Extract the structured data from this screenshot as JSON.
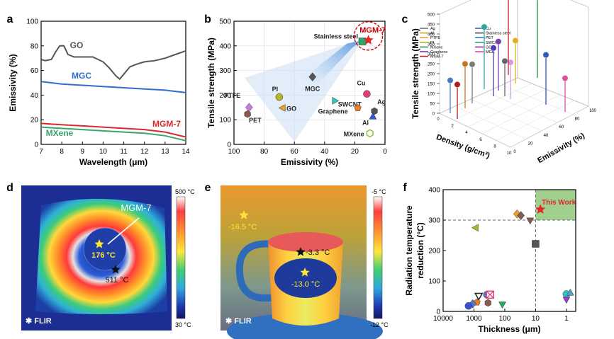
{
  "panels": {
    "a": {
      "letter": "a",
      "chart_data": {
        "type": "line",
        "xlabel": "Wavelength (μm)",
        "ylabel": "Emissivity (%)",
        "xlim": [
          7,
          14
        ],
        "ylim": [
          0,
          100
        ],
        "xticks": [
          "7",
          "8",
          "9",
          "10",
          "11",
          "12",
          "13",
          "14"
        ],
        "yticks": [
          "0",
          "20",
          "40",
          "60",
          "80",
          "100"
        ],
        "series": [
          {
            "name": "GO",
            "color": "#555555",
            "x": [
              7,
              7.2,
              7.5,
              7.7,
              7.9,
              8.1,
              8.3,
              8.6,
              9,
              9.5,
              10,
              10.3,
              10.6,
              10.8,
              11,
              11.3,
              11.6,
              12,
              12.5,
              13,
              13.5,
              14
            ],
            "y": [
              69,
              68,
              69,
              75,
              80,
              80,
              73,
              71,
              71,
              71,
              67,
              62,
              56,
              53,
              57,
              63,
              65,
              67,
              68,
              70,
              73,
              76
            ]
          },
          {
            "name": "MGC",
            "color": "#2f6fcf",
            "x": [
              7,
              8,
              9,
              10,
              11,
              12,
              13,
              14
            ],
            "y": [
              51,
              49,
              48,
              47,
              46,
              45,
              44,
              42
            ]
          },
          {
            "name": "MGM-7",
            "color": "#d92b2b",
            "x": [
              7,
              8,
              9,
              10,
              11,
              12,
              13,
              14
            ],
            "y": [
              17,
              16,
              15,
              14,
              13,
              12,
              10,
              6
            ]
          },
          {
            "name": "MXene",
            "color": "#3aa66a",
            "x": [
              7,
              8,
              9,
              10,
              11,
              12,
              13,
              14
            ],
            "y": [
              14,
              13,
              12,
              11,
              10,
              9,
              7,
              3
            ]
          }
        ]
      }
    },
    "b": {
      "letter": "b",
      "chart_data": {
        "type": "scatter",
        "xlabel": "Emissivity (%)",
        "ylabel": "Tensile strength (MPa)",
        "xlim": [
          100,
          0
        ],
        "ylim": [
          0,
          500
        ],
        "xticks": [
          "100",
          "80",
          "60",
          "40",
          "20",
          "0"
        ],
        "yticks": [
          "0",
          "100",
          "200",
          "300",
          "400",
          "500"
        ],
        "points": [
          {
            "name": "PTFE",
            "x": 90,
            "y": 150,
            "color": "#c77de0",
            "marker": "diamond"
          },
          {
            "name": "PET",
            "x": 91,
            "y": 123,
            "color": "#8a5a4e",
            "marker": "hexagon"
          },
          {
            "name": "PI",
            "x": 70,
            "y": 192,
            "color": "#b5b52a",
            "marker": "circle"
          },
          {
            "name": "GO",
            "x": 68,
            "y": 148,
            "color": "#e8a228",
            "marker": "tri-left"
          },
          {
            "name": "MGC",
            "x": 48,
            "y": 274,
            "color": "#555555",
            "marker": "diamond"
          },
          {
            "name": "SWCNT",
            "x": 33,
            "y": 177,
            "color": "#2cc9c0",
            "marker": "tri-right"
          },
          {
            "name": "Graphene",
            "x": 18,
            "y": 148,
            "color": "#ee7d2a",
            "marker": "pentagon"
          },
          {
            "name": "Cu",
            "x": 12,
            "y": 205,
            "color": "#e23b7a",
            "marker": "circle"
          },
          {
            "name": "Ag",
            "x": 7,
            "y": 135,
            "color": "#555555",
            "marker": "hexagon"
          },
          {
            "name": "Al",
            "x": 8,
            "y": 114,
            "color": "#2c5bd6",
            "marker": "tri-up"
          },
          {
            "name": "MXene",
            "x": 10,
            "y": 45,
            "color": "#86c63c",
            "marker": "hexagon-open"
          },
          {
            "name": "Stainless steel",
            "x": 15,
            "y": 418,
            "color": "#2aa865",
            "marker": "square"
          },
          {
            "name": "MGM-7",
            "x": 11,
            "y": 423,
            "color": "#e02828",
            "marker": "star"
          }
        ],
        "highlight": "MGM-7"
      }
    },
    "c": {
      "letter": "c",
      "chart_data": {
        "type": "scatter",
        "dimension": "3d-stem",
        "xlabel": "Density (g/cm³)",
        "ylabel": "Emissivity (%)",
        "zlabel": "Tensile strength (MPa)",
        "zlim": [
          0,
          500
        ],
        "zticks": [
          "0",
          "50",
          "100",
          "150",
          "200",
          "250",
          "300",
          "350",
          "400",
          "450",
          "500"
        ],
        "xticks": [
          "0",
          "2",
          "4",
          "6",
          "8",
          "10"
        ],
        "yticks": [
          "0",
          "20",
          "40",
          "60",
          "80",
          "100"
        ],
        "legend": [
          {
            "name": "Ag",
            "color": "#777777"
          },
          {
            "name": "Al",
            "color": "#c9a126"
          },
          {
            "name": "PTFE",
            "color": "#e5a640"
          },
          {
            "name": "PI",
            "color": "#b8b02b"
          },
          {
            "name": "MXene",
            "color": "#3c8d5c"
          },
          {
            "name": "Graphene",
            "color": "#6c3bb0"
          },
          {
            "name": "MGM-7",
            "color": "#d02020"
          },
          {
            "name": "Cu",
            "color": "#3b63c4"
          },
          {
            "name": "Stainless steel",
            "color": "#4a4a4a"
          },
          {
            "name": "PET",
            "color": "#2a7bd0"
          },
          {
            "name": "SWCNT",
            "color": "#2b9c8a"
          },
          {
            "name": "GO",
            "color": "#8c2fa7"
          },
          {
            "name": "MGC",
            "color": "#d64ca8"
          }
        ],
        "stems": [
          {
            "color": "#4f78c8",
            "z": 130
          },
          {
            "color": "#b01c1c",
            "z": 140
          },
          {
            "color": "#c9741f",
            "z": 205
          },
          {
            "color": "#7a7a7a",
            "z": 170
          },
          {
            "color": "#d49ae4",
            "z": 155
          },
          {
            "color": "#2fa4a0",
            "z": 320
          },
          {
            "color": "#4a3bb0",
            "z": 230
          },
          {
            "color": "#7d3fb0",
            "z": 235
          },
          {
            "color": "#cc2020",
            "z": 470
          },
          {
            "color": "#e1b01f",
            "z": 195
          },
          {
            "color": "#2a8f3a",
            "z": 440
          },
          {
            "color": "#666666",
            "z": 145
          },
          {
            "color": "#3356b8",
            "z": 240
          },
          {
            "color": "#e04fa0",
            "z": 135
          }
        ]
      }
    },
    "d": {
      "letter": "d",
      "label": "MGM-7",
      "center_temp": "176 °C",
      "edge_temp": "511 °C",
      "scale_max": "500 °C",
      "scale_min": "30 °C",
      "brand": "FLIR"
    },
    "e": {
      "letter": "e",
      "ambient_temp": "-16.5 °C",
      "cup_temp": "-3.3 °C",
      "center_temp": "-13.0 °C",
      "scale_max": "-5 °C",
      "scale_min": "-12 °C",
      "brand": "FLIR"
    },
    "f": {
      "letter": "f",
      "chart_data": {
        "type": "scatter",
        "xlabel": "Thickness (μm)",
        "ylabel": "Radiation temperature reduction (°C)",
        "ylabel_lines": [
          "Radiation temperature",
          "reduction (°C)"
        ],
        "xscale": "log-reversed",
        "xlim": [
          10000,
          0.5
        ],
        "ylim": [
          0,
          400
        ],
        "xticks": [
          "10000",
          "1000",
          "100",
          "10",
          "1"
        ],
        "yticks": [
          "0",
          "100",
          "200",
          "300",
          "400"
        ],
        "this_work_label": "This Work",
        "points": [
          {
            "x": 7,
            "y": 335,
            "color": "#e02828",
            "marker": "star"
          },
          {
            "x": 900,
            "y": 275,
            "color": "#b5b52a",
            "marker": "tri-left"
          },
          {
            "x": 40,
            "y": 320,
            "color": "#e8a228",
            "marker": "diamond"
          },
          {
            "x": 30,
            "y": 315,
            "color": "#8a5a4e",
            "marker": "diamond"
          },
          {
            "x": 15,
            "y": 298,
            "color": "#8a5a4e",
            "marker": "tri-down"
          },
          {
            "x": 10,
            "y": 222,
            "color": "#555555",
            "marker": "square"
          },
          {
            "x": 700,
            "y": 50,
            "color": "#222222",
            "marker": "tri-down-open"
          },
          {
            "x": 800,
            "y": 30,
            "color": "#ee7d2a",
            "marker": "pentagon"
          },
          {
            "x": 1100,
            "y": 25,
            "color": "#4f78c8",
            "marker": "diamond"
          },
          {
            "x": 1500,
            "y": 18,
            "color": "#3b4fd6",
            "marker": "circle"
          },
          {
            "x": 380,
            "y": 55,
            "color": "#4f78c8",
            "marker": "circle"
          },
          {
            "x": 300,
            "y": 55,
            "color": "#e23b7a",
            "marker": "square-x"
          },
          {
            "x": 350,
            "y": 28,
            "color": "#8a5a4e",
            "marker": "hexagon"
          },
          {
            "x": 120,
            "y": 22,
            "color": "#2aa865",
            "marker": "tri-down"
          },
          {
            "x": 1,
            "y": 57,
            "color": "#2cc9c0",
            "marker": "circle"
          },
          {
            "x": 0.75,
            "y": 62,
            "color": "#55a0d0",
            "marker": "tri-up"
          },
          {
            "x": 1,
            "y": 38,
            "color": "#9b3ad6",
            "marker": "tri-down"
          }
        ]
      }
    }
  }
}
